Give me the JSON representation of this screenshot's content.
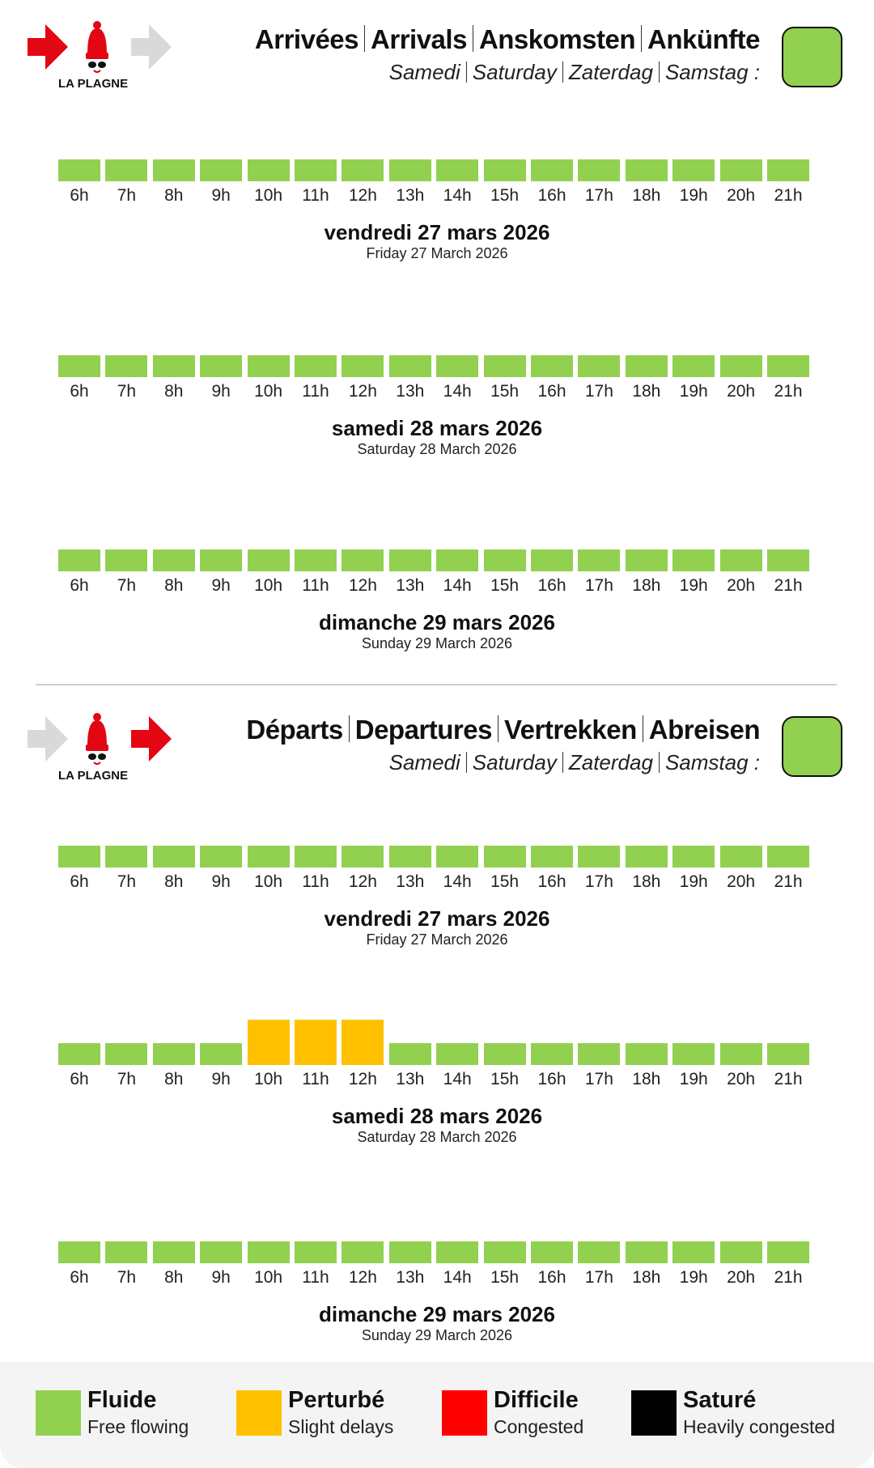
{
  "colors": {
    "fluide": "#92d050",
    "perturbe": "#ffc000",
    "difficile": "#ff0000",
    "sature": "#000000"
  },
  "logo": {
    "text": "LA PLAGNE",
    "brand_red": "#e30613",
    "arrow_grey": "#d9d9d9"
  },
  "sections": [
    {
      "id": "arrivals",
      "title": [
        "Arrivées",
        "Arrivals",
        "Anskomsten",
        "Ankünfte"
      ],
      "subtitle": [
        "Samedi",
        "Saturday",
        "Zaterdag",
        "Samstag :"
      ],
      "overall_status": "fluide",
      "days": [
        {
          "date_fr": "vendredi 27 mars 2026",
          "date_en": "Friday 27 March 2026",
          "hours": [
            "6h",
            "7h",
            "8h",
            "9h",
            "10h",
            "11h",
            "12h",
            "13h",
            "14h",
            "15h",
            "16h",
            "17h",
            "18h",
            "19h",
            "20h",
            "21h"
          ],
          "status": [
            "fluide",
            "fluide",
            "fluide",
            "fluide",
            "fluide",
            "fluide",
            "fluide",
            "fluide",
            "fluide",
            "fluide",
            "fluide",
            "fluide",
            "fluide",
            "fluide",
            "fluide",
            "fluide"
          ]
        },
        {
          "date_fr": "samedi 28 mars 2026",
          "date_en": "Saturday 28 March 2026",
          "hours": [
            "6h",
            "7h",
            "8h",
            "9h",
            "10h",
            "11h",
            "12h",
            "13h",
            "14h",
            "15h",
            "16h",
            "17h",
            "18h",
            "19h",
            "20h",
            "21h"
          ],
          "status": [
            "fluide",
            "fluide",
            "fluide",
            "fluide",
            "fluide",
            "fluide",
            "fluide",
            "fluide",
            "fluide",
            "fluide",
            "fluide",
            "fluide",
            "fluide",
            "fluide",
            "fluide",
            "fluide"
          ]
        },
        {
          "date_fr": "dimanche 29 mars 2026",
          "date_en": "Sunday 29 March 2026",
          "hours": [
            "6h",
            "7h",
            "8h",
            "9h",
            "10h",
            "11h",
            "12h",
            "13h",
            "14h",
            "15h",
            "16h",
            "17h",
            "18h",
            "19h",
            "20h",
            "21h"
          ],
          "status": [
            "fluide",
            "fluide",
            "fluide",
            "fluide",
            "fluide",
            "fluide",
            "fluide",
            "fluide",
            "fluide",
            "fluide",
            "fluide",
            "fluide",
            "fluide",
            "fluide",
            "fluide",
            "fluide"
          ]
        }
      ]
    },
    {
      "id": "departures",
      "title": [
        "Départs",
        "Departures",
        "Vertrekken",
        "Abreisen"
      ],
      "subtitle": [
        "Samedi",
        "Saturday",
        "Zaterdag",
        "Samstag :"
      ],
      "overall_status": "fluide",
      "days": [
        {
          "date_fr": "vendredi 27 mars 2026",
          "date_en": "Friday 27 March 2026",
          "hours": [
            "6h",
            "7h",
            "8h",
            "9h",
            "10h",
            "11h",
            "12h",
            "13h",
            "14h",
            "15h",
            "16h",
            "17h",
            "18h",
            "19h",
            "20h",
            "21h"
          ],
          "status": [
            "fluide",
            "fluide",
            "fluide",
            "fluide",
            "fluide",
            "fluide",
            "fluide",
            "fluide",
            "fluide",
            "fluide",
            "fluide",
            "fluide",
            "fluide",
            "fluide",
            "fluide",
            "fluide"
          ]
        },
        {
          "date_fr": "samedi 28 mars 2026",
          "date_en": "Saturday 28 March 2026",
          "hours": [
            "6h",
            "7h",
            "8h",
            "9h",
            "10h",
            "11h",
            "12h",
            "13h",
            "14h",
            "15h",
            "16h",
            "17h",
            "18h",
            "19h",
            "20h",
            "21h"
          ],
          "status": [
            "fluide",
            "fluide",
            "fluide",
            "fluide",
            "perturbe",
            "perturbe",
            "perturbe",
            "fluide",
            "fluide",
            "fluide",
            "fluide",
            "fluide",
            "fluide",
            "fluide",
            "fluide",
            "fluide"
          ]
        },
        {
          "date_fr": "dimanche 29 mars 2026",
          "date_en": "Sunday 29 March 2026",
          "hours": [
            "6h",
            "7h",
            "8h",
            "9h",
            "10h",
            "11h",
            "12h",
            "13h",
            "14h",
            "15h",
            "16h",
            "17h",
            "18h",
            "19h",
            "20h",
            "21h"
          ],
          "status": [
            "fluide",
            "fluide",
            "fluide",
            "fluide",
            "fluide",
            "fluide",
            "fluide",
            "fluide",
            "fluide",
            "fluide",
            "fluide",
            "fluide",
            "fluide",
            "fluide",
            "fluide",
            "fluide"
          ]
        }
      ]
    }
  ],
  "legend": [
    {
      "key": "fluide",
      "label": "Fluide",
      "sub": "Free flowing"
    },
    {
      "key": "perturbe",
      "label": "Perturbé",
      "sub": "Slight delays"
    },
    {
      "key": "difficile",
      "label": "Difficile",
      "sub": "Congested"
    },
    {
      "key": "sature",
      "label": "Saturé",
      "sub": "Heavily congested"
    }
  ]
}
